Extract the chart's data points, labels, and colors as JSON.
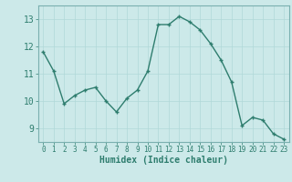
{
  "x": [
    0,
    1,
    2,
    3,
    4,
    5,
    6,
    7,
    8,
    9,
    10,
    11,
    12,
    13,
    14,
    15,
    16,
    17,
    18,
    19,
    20,
    21,
    22,
    23
  ],
  "y": [
    11.8,
    11.1,
    9.9,
    10.2,
    10.4,
    10.5,
    10.0,
    9.6,
    10.1,
    10.4,
    11.1,
    12.8,
    12.8,
    13.1,
    12.9,
    12.6,
    12.1,
    11.5,
    10.7,
    9.1,
    9.4,
    9.3,
    8.8,
    8.6
  ],
  "xlabel": "Humidex (Indice chaleur)",
  "bg_color": "#cce9e9",
  "line_color": "#2e7d6e",
  "marker": "+",
  "grid_color": "#b0d8d8",
  "tick_color": "#2e7d6e",
  "spine_color": "#7ab0b0",
  "ylim": [
    8.5,
    13.5
  ],
  "yticks": [
    9,
    10,
    11,
    12,
    13
  ],
  "xticks": [
    0,
    1,
    2,
    3,
    4,
    5,
    6,
    7,
    8,
    9,
    10,
    11,
    12,
    13,
    14,
    15,
    16,
    17,
    18,
    19,
    20,
    21,
    22,
    23
  ],
  "xlim": [
    -0.5,
    23.5
  ]
}
